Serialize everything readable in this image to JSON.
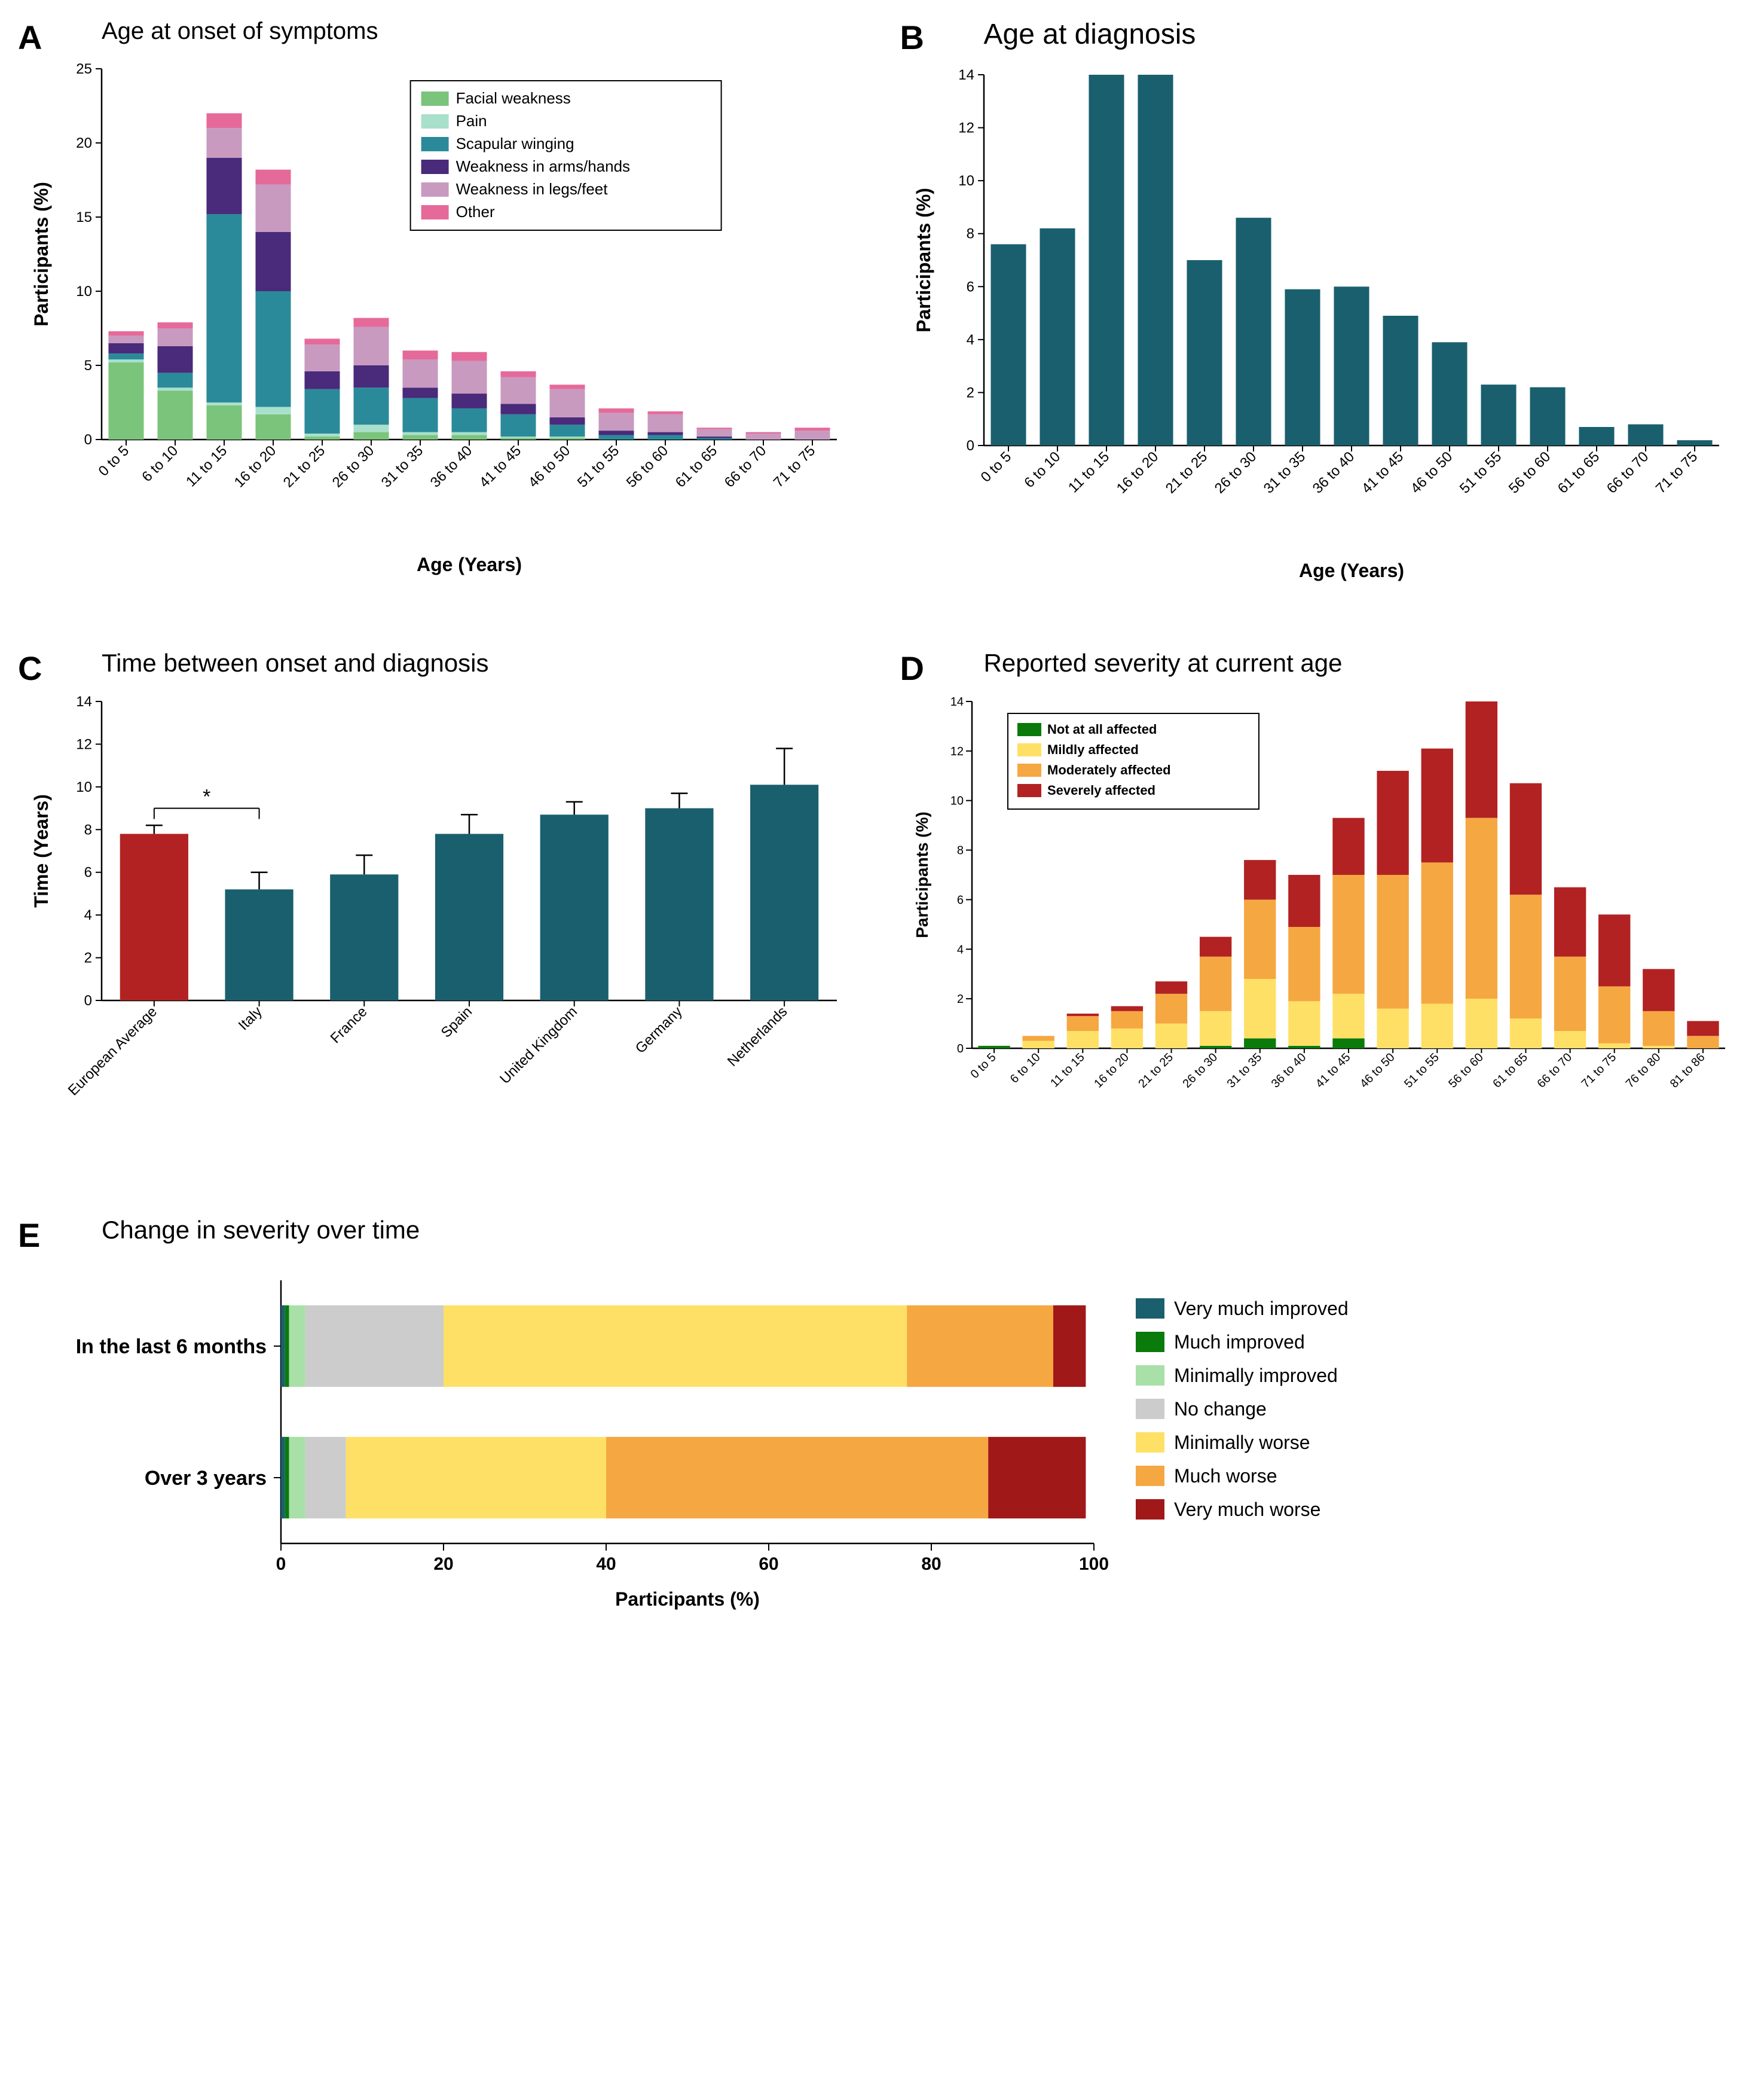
{
  "colors": {
    "teal": "#1a5f6e",
    "red": "#b22222",
    "facial": "#7bc47b",
    "pain": "#a8e0cc",
    "scapular": "#2a8a9a",
    "arms": "#4a2a7a",
    "legs": "#c89ac0",
    "other": "#e56a9a",
    "not_affected": "#0a7a0a",
    "mild": "#ffe066",
    "moderate": "#f5a742",
    "severe": "#b22222",
    "very_much_improved": "#1a5f6e",
    "much_improved": "#0a7a0a",
    "min_improved": "#a8e0a8",
    "no_change": "#cccccc",
    "min_worse": "#ffe066",
    "much_worse": "#f5a742",
    "very_much_worse": "#a01818"
  },
  "panelA": {
    "label": "A",
    "title": "Age at onset of symptoms",
    "xlabel": "Age (Years)",
    "ylabel": "Participants (%)",
    "ymax": 25,
    "ytick": 5,
    "categories": [
      "0 to 5",
      "6 to 10",
      "11 to 15",
      "16 to 20",
      "21 to 25",
      "26 to 30",
      "31 to 35",
      "36 to 40",
      "41 to 45",
      "46 to 50",
      "51 to 55",
      "56 to 60",
      "61 to 65",
      "66 to 70",
      "71 to 75"
    ],
    "legend": [
      "Facial weakness",
      "Pain",
      "Scapular winging",
      "Weakness in arms/hands",
      "Weakness in legs/feet",
      "Other"
    ],
    "legend_colors": [
      "facial",
      "pain",
      "scapular",
      "arms",
      "legs",
      "other"
    ],
    "stacks": [
      {
        "facial": 5.2,
        "pain": 0.2,
        "scapular": 0.4,
        "arms": 0.7,
        "legs": 0.5,
        "other": 0.3
      },
      {
        "facial": 3.3,
        "pain": 0.2,
        "scapular": 1.0,
        "arms": 1.8,
        "legs": 1.2,
        "other": 0.4
      },
      {
        "facial": 2.3,
        "pain": 0.2,
        "scapular": 12.7,
        "arms": 3.8,
        "legs": 2.0,
        "other": 1.0
      },
      {
        "facial": 1.7,
        "pain": 0.5,
        "scapular": 7.8,
        "arms": 4.0,
        "legs": 3.2,
        "other": 1.0
      },
      {
        "facial": 0.2,
        "pain": 0.2,
        "scapular": 3.0,
        "arms": 1.2,
        "legs": 1.8,
        "other": 0.4
      },
      {
        "facial": 0.5,
        "pain": 0.5,
        "scapular": 2.5,
        "arms": 1.5,
        "legs": 2.6,
        "other": 0.6
      },
      {
        "facial": 0.3,
        "pain": 0.2,
        "scapular": 2.3,
        "arms": 0.7,
        "legs": 1.9,
        "other": 0.6
      },
      {
        "facial": 0.3,
        "pain": 0.2,
        "scapular": 1.6,
        "arms": 1.0,
        "legs": 2.2,
        "other": 0.6
      },
      {
        "facial": 0.1,
        "pain": 0.1,
        "scapular": 1.5,
        "arms": 0.7,
        "legs": 1.8,
        "other": 0.4
      },
      {
        "facial": 0.1,
        "pain": 0.1,
        "scapular": 0.8,
        "arms": 0.5,
        "legs": 1.9,
        "other": 0.3
      },
      {
        "facial": 0.0,
        "pain": 0.0,
        "scapular": 0.3,
        "arms": 0.3,
        "legs": 1.2,
        "other": 0.3
      },
      {
        "facial": 0.0,
        "pain": 0.0,
        "scapular": 0.3,
        "arms": 0.2,
        "legs": 1.2,
        "other": 0.2
      },
      {
        "facial": 0.0,
        "pain": 0.0,
        "scapular": 0.1,
        "arms": 0.1,
        "legs": 0.5,
        "other": 0.1
      },
      {
        "facial": 0.0,
        "pain": 0.0,
        "scapular": 0.0,
        "arms": 0.0,
        "legs": 0.4,
        "other": 0.1
      },
      {
        "facial": 0.0,
        "pain": 0.0,
        "scapular": 0.0,
        "arms": 0.0,
        "legs": 0.6,
        "other": 0.2
      }
    ]
  },
  "panelB": {
    "label": "B",
    "title": "Age at diagnosis",
    "xlabel": "Age (Years)",
    "ylabel": "Participants (%)",
    "ymax": 14,
    "ytick": 2,
    "categories": [
      "0 to 5",
      "6 to 10",
      "11 to 15",
      "16 to 20",
      "21 to 25",
      "26 to 30",
      "31 to 35",
      "36 to 40",
      "41 to 45",
      "46 to 50",
      "51 to 55",
      "56 to 60",
      "61 to 65",
      "66 to 70",
      "71 to 75"
    ],
    "values": [
      7.6,
      8.2,
      14,
      14,
      7.0,
      8.6,
      5.9,
      6.0,
      4.9,
      3.9,
      2.3,
      2.2,
      0.7,
      0.8,
      0.2
    ]
  },
  "panelC": {
    "label": "C",
    "title": "Time between onset and diagnosis",
    "ylabel": "Time (Years)",
    "ymax": 14,
    "ytick": 2,
    "categories": [
      "European Average",
      "Italy",
      "France",
      "Spain",
      "United Kingdom",
      "Germany",
      "Netherlands"
    ],
    "values": [
      7.8,
      5.2,
      5.9,
      7.8,
      8.7,
      9.0,
      10.1
    ],
    "errors": [
      0.4,
      0.8,
      0.9,
      0.9,
      0.6,
      0.7,
      1.7
    ],
    "highlight_index": 0,
    "sig_marker": "*"
  },
  "panelD": {
    "label": "D",
    "title": "Reported severity at current age",
    "ylabel": "Participants (%)",
    "ymax": 14,
    "ytick": 2,
    "categories": [
      "0 to 5",
      "6 to 10",
      "11 to 15",
      "16 to 20",
      "21 to 25",
      "26 to 30",
      "31 to 35",
      "36 to 40",
      "41 to 45",
      "46 to 50",
      "51 to 55",
      "56 to 60",
      "61 to 65",
      "66 to 70",
      "71 to 75",
      "76 to 80",
      "81 to 86"
    ],
    "legend": [
      "Not at all affected",
      "Mildly affected",
      "Moderately affected",
      "Severely affected"
    ],
    "legend_colors": [
      "not_affected",
      "mild",
      "moderate",
      "severe"
    ],
    "stacks": [
      {
        "not": 0.1,
        "mild": 0.0,
        "mod": 0.0,
        "sev": 0.0
      },
      {
        "not": 0.0,
        "mild": 0.3,
        "mod": 0.2,
        "sev": 0.0
      },
      {
        "not": 0.0,
        "mild": 0.7,
        "mod": 0.6,
        "sev": 0.1
      },
      {
        "not": 0.0,
        "mild": 0.8,
        "mod": 0.7,
        "sev": 0.2
      },
      {
        "not": 0.0,
        "mild": 1.0,
        "mod": 1.2,
        "sev": 0.5
      },
      {
        "not": 0.1,
        "mild": 1.4,
        "mod": 2.2,
        "sev": 0.8
      },
      {
        "not": 0.4,
        "mild": 2.4,
        "mod": 3.2,
        "sev": 1.6
      },
      {
        "not": 0.1,
        "mild": 1.8,
        "mod": 3.0,
        "sev": 2.1
      },
      {
        "not": 0.4,
        "mild": 1.8,
        "mod": 4.8,
        "sev": 2.3
      },
      {
        "not": 0.0,
        "mild": 1.6,
        "mod": 5.4,
        "sev": 4.2
      },
      {
        "not": 0.0,
        "mild": 1.8,
        "mod": 5.7,
        "sev": 4.6
      },
      {
        "not": 0.0,
        "mild": 2.0,
        "mod": 7.3,
        "sev": 4.7
      },
      {
        "not": 0.0,
        "mild": 1.2,
        "mod": 5.0,
        "sev": 4.5
      },
      {
        "not": 0.0,
        "mild": 0.7,
        "mod": 3.0,
        "sev": 2.8
      },
      {
        "not": 0.0,
        "mild": 0.2,
        "mod": 2.3,
        "sev": 2.9
      },
      {
        "not": 0.0,
        "mild": 0.1,
        "mod": 1.4,
        "sev": 1.7
      },
      {
        "not": 0.0,
        "mild": 0.0,
        "mod": 0.5,
        "sev": 0.6
      }
    ]
  },
  "panelE": {
    "label": "E",
    "title": "Change in severity over time",
    "xlabel": "Participants (%)",
    "xmax": 100,
    "xtick": 20,
    "categories": [
      "In the last 6 months",
      "Over 3 years"
    ],
    "legend": [
      "Very much improved",
      "Much improved",
      "Minimally improved",
      "No change",
      "Minimally worse",
      "Much worse",
      "Very much worse"
    ],
    "legend_colors": [
      "very_much_improved",
      "much_improved",
      "min_improved",
      "no_change",
      "min_worse",
      "much_worse",
      "very_much_worse"
    ],
    "stacks": [
      {
        "vmi": 0.5,
        "mi": 0.5,
        "mini": 2,
        "nc": 17,
        "minw": 57,
        "mw": 18,
        "vmw": 4
      },
      {
        "vmi": 0.5,
        "mi": 0.5,
        "mini": 2,
        "nc": 5,
        "minw": 32,
        "mw": 47,
        "vmw": 12
      }
    ]
  }
}
